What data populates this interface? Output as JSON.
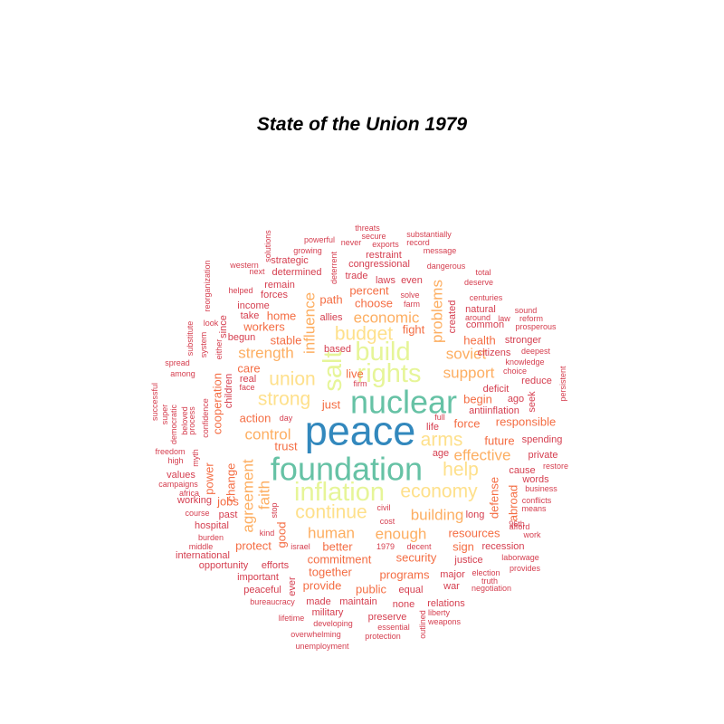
{
  "title": "State of the Union 1979",
  "chart_data": {
    "type": "wordcloud",
    "title": "State of the Union 1979",
    "palette": {
      "1": "#d53e4f",
      "2": "#f46d43",
      "3": "#fdae61",
      "4": "#fee08b",
      "5": "#e6f598",
      "6": "#66c2a5",
      "7": "#3288bd"
    },
    "words": [
      {
        "text": "peace",
        "weight": 7
      },
      {
        "text": "foundation",
        "weight": 6
      },
      {
        "text": "nuclear",
        "weight": 6
      },
      {
        "text": "inflation",
        "weight": 5
      },
      {
        "text": "rights",
        "weight": 5
      },
      {
        "text": "build",
        "weight": 5
      },
      {
        "text": "salt",
        "weight": 5
      },
      {
        "text": "continue",
        "weight": 4
      },
      {
        "text": "economy",
        "weight": 4
      },
      {
        "text": "strong",
        "weight": 4
      },
      {
        "text": "help",
        "weight": 4
      },
      {
        "text": "arms",
        "weight": 4
      },
      {
        "text": "budget",
        "weight": 4
      },
      {
        "text": "union",
        "weight": 4
      },
      {
        "text": "control",
        "weight": 3
      },
      {
        "text": "human",
        "weight": 3
      },
      {
        "text": "enough",
        "weight": 3
      },
      {
        "text": "building",
        "weight": 3
      },
      {
        "text": "economic",
        "weight": 3
      },
      {
        "text": "soviet",
        "weight": 3
      },
      {
        "text": "strength",
        "weight": 3
      },
      {
        "text": "influence",
        "weight": 3
      },
      {
        "text": "support",
        "weight": 3
      },
      {
        "text": "agreement",
        "weight": 3
      },
      {
        "text": "faith",
        "weight": 3
      },
      {
        "text": "effective",
        "weight": 3
      },
      {
        "text": "problems",
        "weight": 3
      },
      {
        "text": "force",
        "weight": 2
      },
      {
        "text": "responsible",
        "weight": 2
      },
      {
        "text": "security",
        "weight": 2
      },
      {
        "text": "commitment",
        "weight": 2
      },
      {
        "text": "together",
        "weight": 2
      },
      {
        "text": "better",
        "weight": 2
      },
      {
        "text": "stable",
        "weight": 2
      },
      {
        "text": "home",
        "weight": 2
      },
      {
        "text": "workers",
        "weight": 2
      },
      {
        "text": "choose",
        "weight": 2
      },
      {
        "text": "path",
        "weight": 2
      },
      {
        "text": "percent",
        "weight": 2
      },
      {
        "text": "fight",
        "weight": 2
      },
      {
        "text": "health",
        "weight": 2
      },
      {
        "text": "future",
        "weight": 2
      },
      {
        "text": "defense",
        "weight": 2
      },
      {
        "text": "programs",
        "weight": 2
      },
      {
        "text": "public",
        "weight": 2
      },
      {
        "text": "provide",
        "weight": 2
      },
      {
        "text": "resources",
        "weight": 2
      },
      {
        "text": "protect",
        "weight": 2
      },
      {
        "text": "good",
        "weight": 2
      },
      {
        "text": "change",
        "weight": 2
      },
      {
        "text": "jobs",
        "weight": 2
      },
      {
        "text": "power",
        "weight": 2
      },
      {
        "text": "action",
        "weight": 2
      },
      {
        "text": "care",
        "weight": 2
      },
      {
        "text": "trust",
        "weight": 2
      },
      {
        "text": "live",
        "weight": 2
      },
      {
        "text": "just",
        "weight": 2
      },
      {
        "text": "begin",
        "weight": 2
      },
      {
        "text": "sign",
        "weight": 2
      },
      {
        "text": "cooperation",
        "weight": 2
      },
      {
        "text": "abroad",
        "weight": 2
      },
      {
        "text": "recession",
        "weight": 1
      },
      {
        "text": "spending",
        "weight": 1
      },
      {
        "text": "major",
        "weight": 1
      },
      {
        "text": "war",
        "weight": 1
      },
      {
        "text": "justice",
        "weight": 1
      },
      {
        "text": "made",
        "weight": 1
      },
      {
        "text": "maintain",
        "weight": 1
      },
      {
        "text": "none",
        "weight": 1
      },
      {
        "text": "relations",
        "weight": 1
      },
      {
        "text": "military",
        "weight": 1
      },
      {
        "text": "preserve",
        "weight": 1
      },
      {
        "text": "equal",
        "weight": 1
      },
      {
        "text": "important",
        "weight": 1
      },
      {
        "text": "peaceful",
        "weight": 1
      },
      {
        "text": "ever",
        "weight": 1
      },
      {
        "text": "real",
        "weight": 1
      },
      {
        "text": "children",
        "weight": 1
      },
      {
        "text": "income",
        "weight": 1
      },
      {
        "text": "take",
        "weight": 1
      },
      {
        "text": "begun",
        "weight": 1
      },
      {
        "text": "since",
        "weight": 1
      },
      {
        "text": "remain",
        "weight": 1
      },
      {
        "text": "forces",
        "weight": 1
      },
      {
        "text": "determined",
        "weight": 1
      },
      {
        "text": "strategic",
        "weight": 1
      },
      {
        "text": "congressional",
        "weight": 1
      },
      {
        "text": "restraint",
        "weight": 1
      },
      {
        "text": "trade",
        "weight": 1
      },
      {
        "text": "laws",
        "weight": 1
      },
      {
        "text": "even",
        "weight": 1
      },
      {
        "text": "allies",
        "weight": 1
      },
      {
        "text": "based",
        "weight": 1
      },
      {
        "text": "natural",
        "weight": 1
      },
      {
        "text": "common",
        "weight": 1
      },
      {
        "text": "stronger",
        "weight": 1
      },
      {
        "text": "citizens",
        "weight": 1
      },
      {
        "text": "deficit",
        "weight": 1
      },
      {
        "text": "antiinflation",
        "weight": 1
      },
      {
        "text": "reduce",
        "weight": 1
      },
      {
        "text": "words",
        "weight": 1
      },
      {
        "text": "private",
        "weight": 1
      },
      {
        "text": "cause",
        "weight": 1
      },
      {
        "text": "long",
        "weight": 1
      },
      {
        "text": "seek",
        "weight": 1
      },
      {
        "text": "ago",
        "weight": 1
      },
      {
        "text": "past",
        "weight": 1
      },
      {
        "text": "hospital",
        "weight": 1
      },
      {
        "text": "working",
        "weight": 1
      },
      {
        "text": "values",
        "weight": 1
      },
      {
        "text": "international",
        "weight": 1
      },
      {
        "text": "opportunity",
        "weight": 1
      },
      {
        "text": "efforts",
        "weight": 1
      },
      {
        "text": "age",
        "weight": 1
      },
      {
        "text": "life",
        "weight": 1
      },
      {
        "text": "created",
        "weight": 1
      },
      {
        "text": "threats",
        "weight": 0
      },
      {
        "text": "secure",
        "weight": 0
      },
      {
        "text": "substantially",
        "weight": 0
      },
      {
        "text": "powerful",
        "weight": 0
      },
      {
        "text": "never",
        "weight": 0
      },
      {
        "text": "exports",
        "weight": 0
      },
      {
        "text": "record",
        "weight": 0
      },
      {
        "text": "growing",
        "weight": 0
      },
      {
        "text": "message",
        "weight": 0
      },
      {
        "text": "solutions",
        "weight": 0
      },
      {
        "text": "western",
        "weight": 0
      },
      {
        "text": "next",
        "weight": 0
      },
      {
        "text": "deterrent",
        "weight": 0
      },
      {
        "text": "dangerous",
        "weight": 0
      },
      {
        "text": "total",
        "weight": 0
      },
      {
        "text": "deserve",
        "weight": 0
      },
      {
        "text": "helped",
        "weight": 0
      },
      {
        "text": "solve",
        "weight": 0
      },
      {
        "text": "farm",
        "weight": 0
      },
      {
        "text": "centuries",
        "weight": 0
      },
      {
        "text": "reorganization",
        "weight": 0
      },
      {
        "text": "around",
        "weight": 0
      },
      {
        "text": "law",
        "weight": 0
      },
      {
        "text": "sound",
        "weight": 0
      },
      {
        "text": "reform",
        "weight": 0
      },
      {
        "text": "prosperous",
        "weight": 0
      },
      {
        "text": "look",
        "weight": 0
      },
      {
        "text": "substitute",
        "weight": 0
      },
      {
        "text": "system",
        "weight": 0
      },
      {
        "text": "either",
        "weight": 0
      },
      {
        "text": "deepest",
        "weight": 0
      },
      {
        "text": "knowledge",
        "weight": 0
      },
      {
        "text": "choice",
        "weight": 0
      },
      {
        "text": "spread",
        "weight": 0
      },
      {
        "text": "among",
        "weight": 0
      },
      {
        "text": "face",
        "weight": 0
      },
      {
        "text": "firm",
        "weight": 0
      },
      {
        "text": "persistent",
        "weight": 0
      },
      {
        "text": "successful",
        "weight": 0
      },
      {
        "text": "super",
        "weight": 0
      },
      {
        "text": "democratic",
        "weight": 0
      },
      {
        "text": "beloved",
        "weight": 0
      },
      {
        "text": "process",
        "weight": 0
      },
      {
        "text": "confidence",
        "weight": 0
      },
      {
        "text": "day",
        "weight": 0
      },
      {
        "text": "full",
        "weight": 0
      },
      {
        "text": "freedom",
        "weight": 0
      },
      {
        "text": "high",
        "weight": 0
      },
      {
        "text": "myth",
        "weight": 0
      },
      {
        "text": "restore",
        "weight": 0
      },
      {
        "text": "campaigns",
        "weight": 0
      },
      {
        "text": "africa",
        "weight": 0
      },
      {
        "text": "business",
        "weight": 0
      },
      {
        "text": "conflicts",
        "weight": 0
      },
      {
        "text": "means",
        "weight": 0
      },
      {
        "text": "course",
        "weight": 0
      },
      {
        "text": "civil",
        "weight": 0
      },
      {
        "text": "cost",
        "weight": 0
      },
      {
        "text": "96th",
        "weight": 0
      },
      {
        "text": "afford",
        "weight": 0
      },
      {
        "text": "work",
        "weight": 0
      },
      {
        "text": "burden",
        "weight": 0
      },
      {
        "text": "kind",
        "weight": 0
      },
      {
        "text": "stop",
        "weight": 0
      },
      {
        "text": "middle",
        "weight": 0
      },
      {
        "text": "israel",
        "weight": 0
      },
      {
        "text": "1979",
        "weight": 0
      },
      {
        "text": "decent",
        "weight": 0
      },
      {
        "text": "laborwage",
        "weight": 0
      },
      {
        "text": "provides",
        "weight": 0
      },
      {
        "text": "election",
        "weight": 0
      },
      {
        "text": "truth",
        "weight": 0
      },
      {
        "text": "negotiation",
        "weight": 0
      },
      {
        "text": "bureaucracy",
        "weight": 0
      },
      {
        "text": "lifetime",
        "weight": 0
      },
      {
        "text": "developing",
        "weight": 0
      },
      {
        "text": "essential",
        "weight": 0
      },
      {
        "text": "outlined",
        "weight": 0
      },
      {
        "text": "liberty",
        "weight": 0
      },
      {
        "text": "weapons",
        "weight": 0
      },
      {
        "text": "overwhelming",
        "weight": 0
      },
      {
        "text": "protection",
        "weight": 0
      },
      {
        "text": "unemployment",
        "weight": 0
      }
    ]
  }
}
